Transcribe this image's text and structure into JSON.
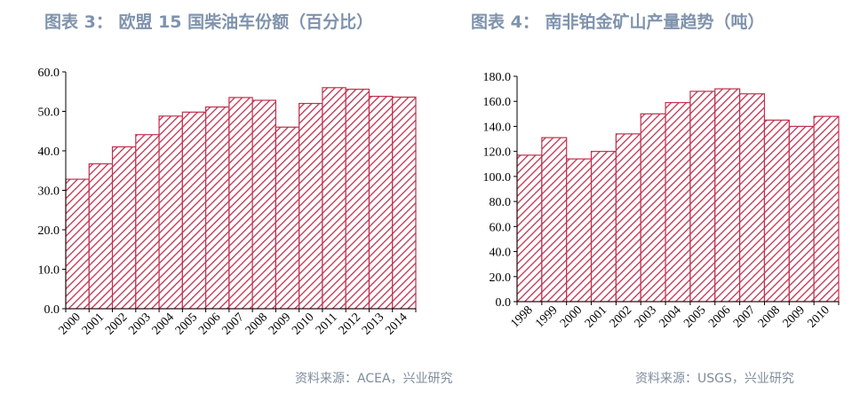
{
  "charts": [
    {
      "title": "图表 3：  欧盟 15 国柴油车份额（百分比）",
      "source": "资料来源：ACEA，兴业研究",
      "bar_color": "#c0314f",
      "ytick_labels": [
        "0.0",
        "10.0",
        "20.0",
        "30.0",
        "40.0",
        "50.0",
        "60.0"
      ],
      "chart_data": {
        "type": "bar",
        "title": "",
        "xlabel": "",
        "ylabel": "",
        "ylim": [
          0,
          60
        ],
        "categories": [
          "2000",
          "2001",
          "2002",
          "2003",
          "2004",
          "2005",
          "2006",
          "2007",
          "2008",
          "2009",
          "2010",
          "2011",
          "2012",
          "2013",
          "2014"
        ],
        "values": [
          32.8,
          36.7,
          41.0,
          44.1,
          48.8,
          49.8,
          51.1,
          53.5,
          52.8,
          46.0,
          52.0,
          56.0,
          55.6,
          53.8,
          53.6
        ]
      }
    },
    {
      "title": "图表 4：  南非铂金矿山产量趋势（吨）",
      "source": "资料来源：USGS，兴业研究",
      "bar_color": "#c0314f",
      "ytick_labels": [
        "0.0",
        "20.0",
        "40.0",
        "60.0",
        "80.0",
        "100.0",
        "120.0",
        "140.0",
        "160.0",
        "180.0"
      ],
      "chart_data": {
        "type": "bar",
        "title": "",
        "xlabel": "",
        "ylabel": "",
        "ylim": [
          0,
          180
        ],
        "categories": [
          "1998",
          "1999",
          "2000",
          "2001",
          "2002",
          "2003",
          "2004",
          "2005",
          "2006",
          "2007",
          "2008",
          "2009",
          "2010"
        ],
        "values": [
          117,
          131,
          114,
          120,
          134,
          150,
          159,
          168,
          170,
          166,
          145,
          140,
          148
        ]
      }
    }
  ]
}
